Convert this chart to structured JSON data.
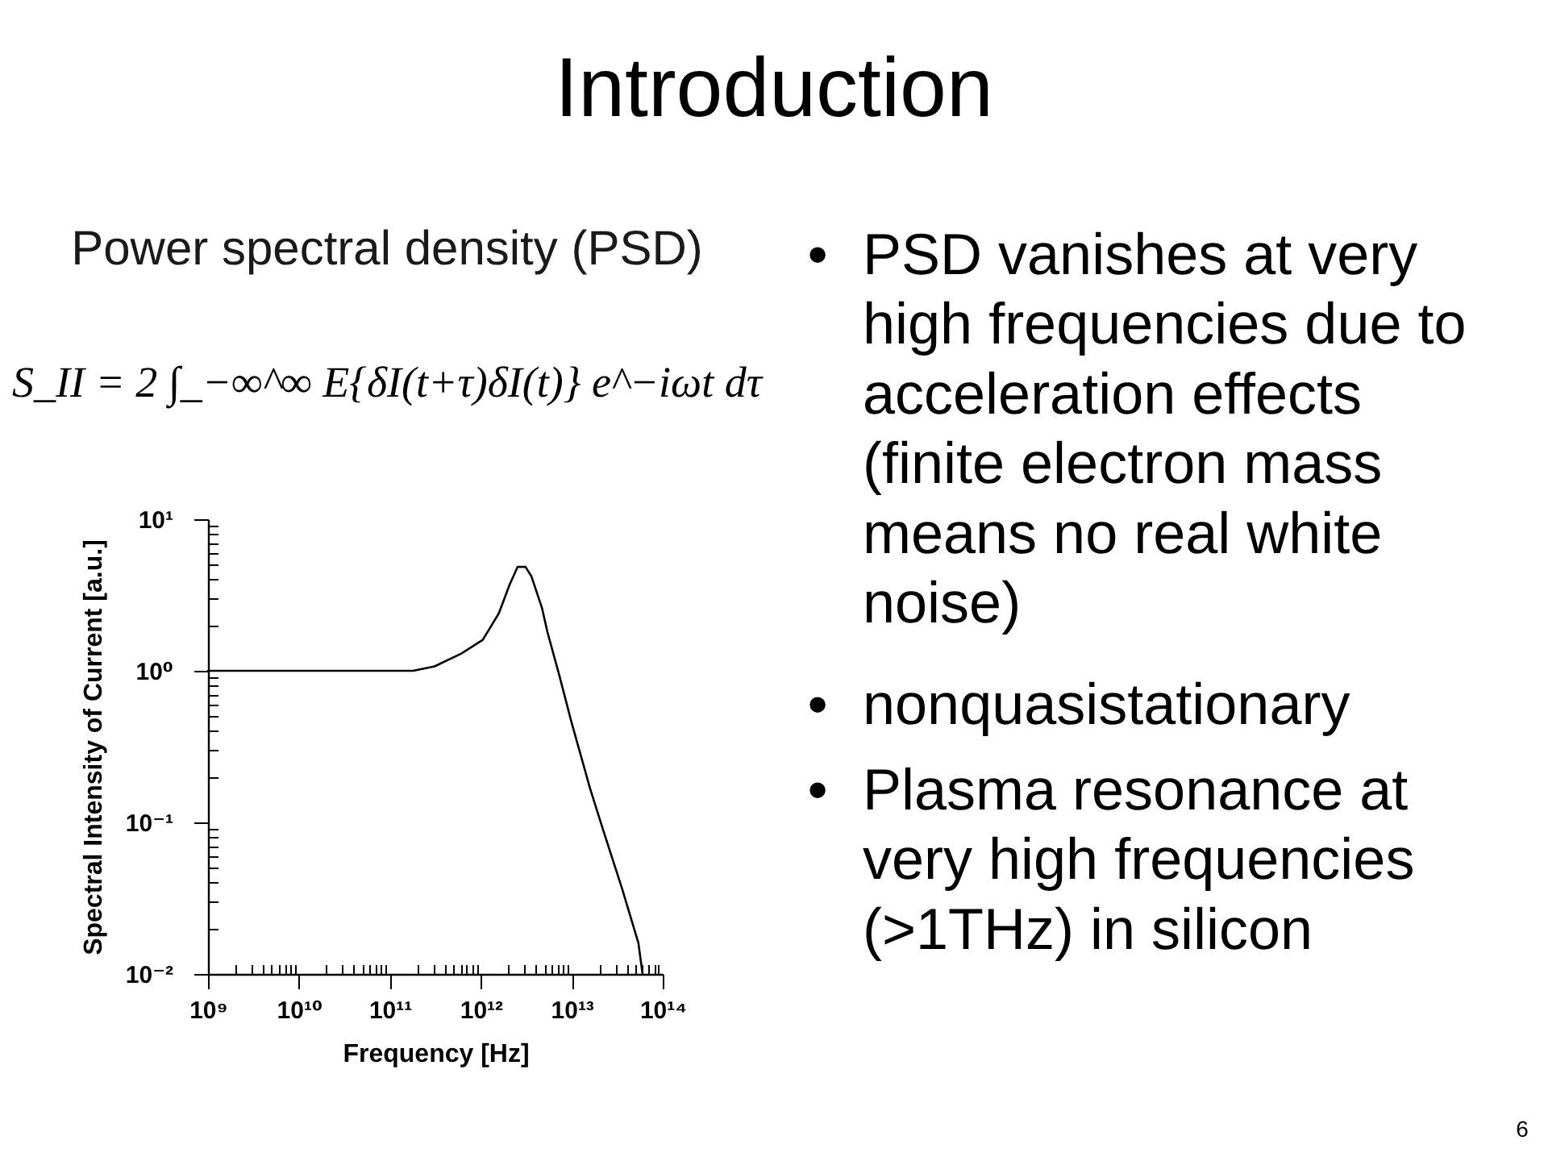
{
  "chart_data": {
    "type": "line",
    "title": "Introduction",
    "xlabel": "Frequency  [Hz]",
    "ylabel": "Spectral Intensity of Current  [a.u.]",
    "annotations": [
      "Power spectral density (PSD)",
      "S_II = 2 ∫_−∞^∞ E{δI(t+τ)δI(t)} e^−iωt dτ",
      "• PSD vanishes at very high frequencies due to acceleration effects (finite electron mass means no real white noise)",
      "• nonquasistationary",
      "• Plasma resonance at very high frequencies (>1THz) in silicon",
      "6"
    ],
    "x": [
      1000000000.0,
      10000000000.0,
      100000000000.0,
      180000000000.0,
      310000000000.0,
      610000000000.0,
      1050000000000.0,
      1580000000000.0,
      2070000000000.0,
      2540000000000.0,
      3100000000000.0,
      3600000000000.0,
      4700000000000.0,
      5400000000000.0,
      7300000000000.0,
      9900000000000.0,
      12100000000000.0,
      15900000000000.0,
      22400000000000.0,
      36000000000000.0,
      54000000000000.0,
      60000000000000.0
    ],
    "series": [
      {
        "color": "#000000",
        "values": [
          1,
          1,
          1,
          1.0,
          1.07,
          1.3,
          1.6,
          2.4,
          3.7,
          4.85,
          4.85,
          4.2,
          2.6,
          1.8,
          0.93,
          0.46,
          0.3,
          0.167,
          0.087,
          0.036,
          0.016,
          0.01
        ]
      }
    ],
    "log": "xy",
    "xlim": [
      1000000000.0,
      100000000000000.0
    ],
    "ylim": [
      0.01,
      10
    ],
    "xticks": [
      {
        "value": 1000000000.0,
        "label": "10⁹"
      },
      {
        "value": 2000000000.0,
        "label": null
      },
      {
        "value": 3000000000.0,
        "label": null
      },
      {
        "value": 4000000000.0,
        "label": null
      },
      {
        "value": 5000000000.0,
        "label": null
      },
      {
        "value": 6000000000.0,
        "label": null
      },
      {
        "value": 7000000000.0,
        "label": null
      },
      {
        "value": 8000000000.0,
        "label": null
      },
      {
        "value": 9000000000.0,
        "label": null
      },
      {
        "value": 10000000000.0,
        "label": "10¹⁰"
      },
      {
        "value": 20000000000.0,
        "label": null
      },
      {
        "value": 30000000000.0,
        "label": null
      },
      {
        "value": 40000000000.0,
        "label": null
      },
      {
        "value": 50000000000.0,
        "label": null
      },
      {
        "value": 60000000000.0,
        "label": null
      },
      {
        "value": 70000000000.0,
        "label": null
      },
      {
        "value": 80000000000.0,
        "label": null
      },
      {
        "value": 90000000000.0,
        "label": null
      },
      {
        "value": 100000000000.0,
        "label": "10¹¹"
      },
      {
        "value": 200000000000.0,
        "label": null
      },
      {
        "value": 300000000000.0,
        "label": null
      },
      {
        "value": 400000000000.0,
        "label": null
      },
      {
        "value": 500000000000.0,
        "label": null
      },
      {
        "value": 600000000000.0,
        "label": null
      },
      {
        "value": 700000000000.0,
        "label": null
      },
      {
        "value": 800000000000.0,
        "label": null
      },
      {
        "value": 900000000000.0,
        "label": null
      },
      {
        "value": 1000000000000.0,
        "label": "10¹²"
      },
      {
        "value": 2000000000000.0,
        "label": null
      },
      {
        "value": 3000000000000.0,
        "label": null
      },
      {
        "value": 4000000000000.0,
        "label": null
      },
      {
        "value": 5000000000000.0,
        "label": null
      },
      {
        "value": 6000000000000.0,
        "label": null
      },
      {
        "value": 7000000000000.0,
        "label": null
      },
      {
        "value": 8000000000000.0,
        "label": null
      },
      {
        "value": 9000000000000.0,
        "label": null
      },
      {
        "value": 10000000000000.0,
        "label": "10¹³"
      },
      {
        "value": 20000000000000.0,
        "label": null
      },
      {
        "value": 30000000000000.0,
        "label": null
      },
      {
        "value": 40000000000000.0,
        "label": null
      },
      {
        "value": 50000000000000.0,
        "label": null
      },
      {
        "value": 60000000000000.0,
        "label": null
      },
      {
        "value": 70000000000000.0,
        "label": null
      },
      {
        "value": 80000000000000.0,
        "label": null
      },
      {
        "value": 90000000000000.0,
        "label": null
      },
      {
        "value": 100000000000000.0,
        "label": "10¹⁴"
      }
    ],
    "yticks": [
      {
        "value": 0.01,
        "label": "10⁻²"
      },
      {
        "value": 0.02,
        "label": null
      },
      {
        "value": 0.03,
        "label": null
      },
      {
        "value": 0.04,
        "label": null
      },
      {
        "value": 0.05,
        "label": null
      },
      {
        "value": 0.06,
        "label": null
      },
      {
        "value": 0.07,
        "label": null
      },
      {
        "value": 0.08,
        "label": null
      },
      {
        "value": 0.09,
        "label": null
      },
      {
        "value": 0.1,
        "label": "10⁻¹"
      },
      {
        "value": 0.2,
        "label": null
      },
      {
        "value": 0.3,
        "label": null
      },
      {
        "value": 0.4,
        "label": null
      },
      {
        "value": 0.5,
        "label": null
      },
      {
        "value": 0.6,
        "label": null
      },
      {
        "value": 0.7,
        "label": null
      },
      {
        "value": 0.8,
        "label": null
      },
      {
        "value": 0.9,
        "label": null
      },
      {
        "value": 1,
        "label": "10⁰"
      },
      {
        "value": 2,
        "label": null
      },
      {
        "value": 3,
        "label": null
      },
      {
        "value": 4,
        "label": null
      },
      {
        "value": 5,
        "label": null
      },
      {
        "value": 6,
        "label": null
      },
      {
        "value": 7,
        "label": null
      },
      {
        "value": 8,
        "label": null
      },
      {
        "value": 9,
        "label": null
      },
      {
        "value": 10,
        "label": "10¹"
      }
    ]
  }
}
